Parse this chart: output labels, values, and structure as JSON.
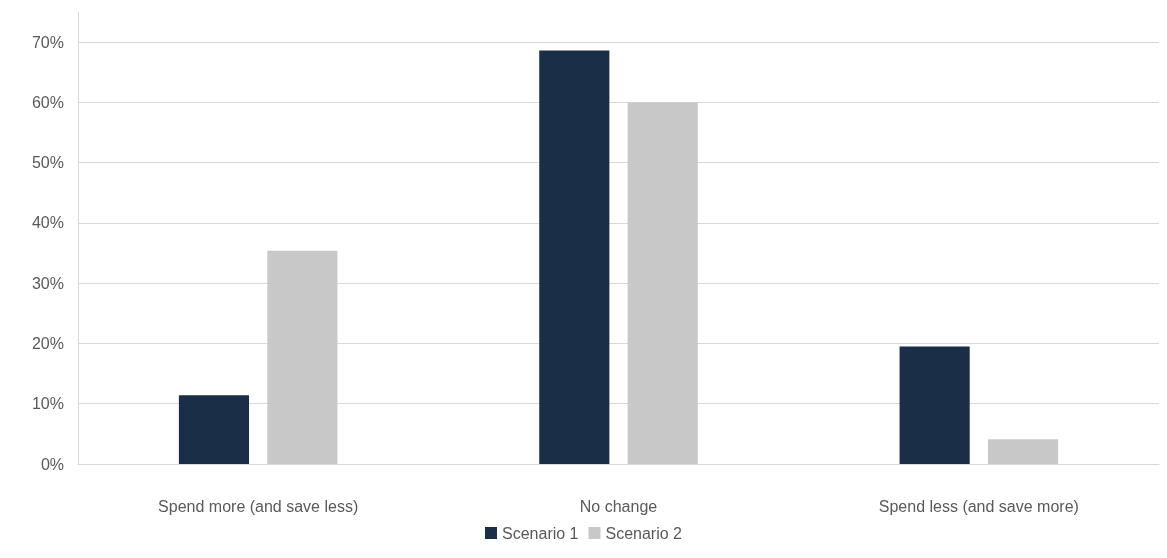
{
  "chart_data": {
    "type": "bar",
    "categories": [
      "Spend more (and save less)",
      "No change",
      "Spend less (and save more)"
    ],
    "series": [
      {
        "name": "Scenario 1",
        "color": "#1a2e47",
        "values": [
          11.4,
          68.6,
          19.5
        ]
      },
      {
        "name": "Scenario 2",
        "color": "#c8c8c8",
        "values": [
          35.4,
          60.0,
          4.1
        ]
      }
    ],
    "ylim": [
      0,
      75
    ],
    "yticks": [
      {
        "value": 0,
        "label": "0%"
      },
      {
        "value": 10,
        "label": "10%"
      },
      {
        "value": 20,
        "label": "20%"
      },
      {
        "value": 30,
        "label": "30%"
      },
      {
        "value": 40,
        "label": "40%"
      },
      {
        "value": 50,
        "label": "50%"
      },
      {
        "value": 60,
        "label": "60%"
      },
      {
        "value": 70,
        "label": "70%"
      }
    ],
    "grid": "y",
    "legend": "bottom"
  }
}
